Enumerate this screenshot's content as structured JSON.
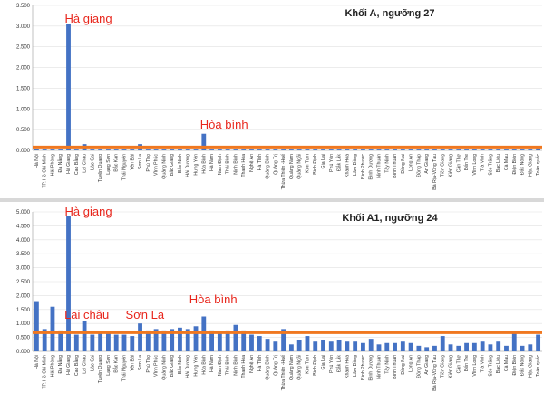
{
  "chart_data": [
    {
      "type": "bar",
      "title": "Khối A, ngưỡng 27",
      "ylim": [
        0,
        3.5
      ],
      "yticks": [
        "0.000",
        "0.500",
        "1.000",
        "1.500",
        "2.000",
        "2.500",
        "3.000",
        "3.500"
      ],
      "threshold": 0.08,
      "colors": {
        "bar": "#4472c4",
        "threshold": "#f07820"
      },
      "annotations": [
        {
          "text": "Hà giang",
          "category": "Hà Giang"
        },
        {
          "text": "Hòa bình",
          "category": "Hòa Bình"
        }
      ],
      "categories": [
        "Hà Nội",
        "TP. Hồ Chí Minh",
        "Hải Phòng",
        "Đà Nẵng",
        "Hà Giang",
        "Cao Bằng",
        "Lai Châu",
        "Lào Cai",
        "Tuyên Quang",
        "Lạng Sơn",
        "Bắc Kạn",
        "Thái Nguyên",
        "Yên Bái",
        "Sơn La",
        "Phú Thọ",
        "Vĩnh Phúc",
        "Quảng Ninh",
        "Bắc Giang",
        "Bắc Ninh",
        "Hải Dương",
        "Hưng Yên",
        "Hòa Bình",
        "Hà Nam",
        "Nam Định",
        "Thái Bình",
        "Ninh Bình",
        "Thanh Hóa",
        "Nghệ An",
        "Hà Tĩnh",
        "Quảng Bình",
        "Quảng Trị",
        "Thừa Thiên -Huế",
        "Quảng Nam",
        "Quảng Ngãi",
        "Kon Tum",
        "Bình Định",
        "Gia Lai",
        "Phú Yên",
        "Đắk Lắk",
        "Khánh Hòa",
        "Lâm Đồng",
        "Bình Phước",
        "Bình Dương",
        "Ninh Thuận",
        "Tây Ninh",
        "Bình Thuận",
        "Đồng Nai",
        "Long An",
        "Đồng Tháp",
        "An Giang",
        "Bà Rịa-Vũng Tàu",
        "Tiền Giang",
        "Kiên Giang",
        "Cần Thơ",
        "Bến Tre",
        "Vĩnh Long",
        "Trà Vinh",
        "Sóc Trăng",
        "Bạc Liêu",
        "Cà Mau",
        "Điện Biên",
        "Đắk Nông",
        "Hậu Giang",
        "Toàn quốc"
      ],
      "values": [
        0.03,
        0.02,
        0.02,
        0.02,
        3.05,
        0.02,
        0.15,
        0.02,
        0.02,
        0.02,
        0.02,
        0.02,
        0.02,
        0.15,
        0.02,
        0.02,
        0.02,
        0.02,
        0.02,
        0.02,
        0.02,
        0.4,
        0.02,
        0.02,
        0.02,
        0.02,
        0.02,
        0.02,
        0.02,
        0.02,
        0.02,
        0.02,
        0.02,
        0.02,
        0.02,
        0.02,
        0.02,
        0.02,
        0.02,
        0.02,
        0.02,
        0.02,
        0.02,
        0.02,
        0.02,
        0.02,
        0.02,
        0.02,
        0.02,
        0.02,
        0.02,
        0.02,
        0.02,
        0.02,
        0.02,
        0.02,
        0.02,
        0.02,
        0.02,
        0.02,
        0.02,
        0.02,
        0.02,
        0.05
      ]
    },
    {
      "type": "bar",
      "title": "Khối A1, ngưỡng 24",
      "ylim": [
        0,
        5.0
      ],
      "yticks": [
        "0.000",
        "0.500",
        "1.000",
        "1.500",
        "2.000",
        "2.500",
        "3.000",
        "3.500",
        "4.000",
        "4.500",
        "5.000"
      ],
      "threshold": 0.67,
      "colors": {
        "bar": "#4472c4",
        "threshold": "#f07820"
      },
      "annotations": [
        {
          "text": "Hà giang",
          "category": "Hà Giang"
        },
        {
          "text": "Lai châu",
          "category": "Lai Châu"
        },
        {
          "text": "Sơn La",
          "category": "Sơn La"
        },
        {
          "text": "Hòa bình",
          "category": "Hòa Bình"
        }
      ],
      "categories": [
        "Hà Nội",
        "TP. Hồ Chí Minh",
        "Hải Phòng",
        "Đà Nẵng",
        "Hà Giang",
        "Cao Bằng",
        "Lai Châu",
        "Lào Cai",
        "Tuyên Quang",
        "Lạng Sơn",
        "Bắc Kạn",
        "Thái Nguyên",
        "Yên Bái",
        "Sơn La",
        "Phú Thọ",
        "Vĩnh Phúc",
        "Quảng Ninh",
        "Bắc Giang",
        "Bắc Ninh",
        "Hải Dương",
        "Hưng Yên",
        "Hòa Bình",
        "Hà Nam",
        "Nam Định",
        "Thái Bình",
        "Ninh Bình",
        "Thanh Hóa",
        "Nghệ An",
        "Hà Tĩnh",
        "Quảng Bình",
        "Quảng Trị",
        "Thừa Thiên -Huế",
        "Quảng Nam",
        "Quảng Ngãi",
        "Kon Tum",
        "Bình Định",
        "Gia Lai",
        "Phú Yên",
        "Đắk Lắk",
        "Khánh Hòa",
        "Lâm Đồng",
        "Bình Phước",
        "Bình Dương",
        "Ninh Thuận",
        "Tây Ninh",
        "Bình Thuận",
        "Đồng Nai",
        "Long An",
        "Đồng Tháp",
        "An Giang",
        "Bà Rịa-Vũng Tàu",
        "Tiền Giang",
        "Kiên Giang",
        "Cần Thơ",
        "Bến Tre",
        "Vĩnh Long",
        "Trà Vinh",
        "Sóc Trăng",
        "Bạc Liêu",
        "Cà Mau",
        "Điện Biên",
        "Đắk Nông",
        "Hậu Giang",
        "Toàn quốc"
      ],
      "values": [
        1.8,
        0.8,
        1.6,
        0.75,
        4.85,
        0.6,
        1.1,
        0.6,
        0.65,
        0.7,
        0.6,
        0.6,
        0.55,
        1.0,
        0.75,
        0.8,
        0.75,
        0.8,
        0.85,
        0.8,
        0.9,
        1.25,
        0.75,
        0.7,
        0.75,
        0.95,
        0.75,
        0.6,
        0.55,
        0.45,
        0.35,
        0.8,
        0.25,
        0.4,
        0.55,
        0.35,
        0.4,
        0.35,
        0.4,
        0.35,
        0.35,
        0.3,
        0.45,
        0.25,
        0.3,
        0.3,
        0.35,
        0.3,
        0.2,
        0.15,
        0.2,
        0.55,
        0.25,
        0.2,
        0.3,
        0.3,
        0.35,
        0.25,
        0.35,
        0.2,
        0.65,
        0.2,
        0.25,
        0.6
      ]
    }
  ]
}
